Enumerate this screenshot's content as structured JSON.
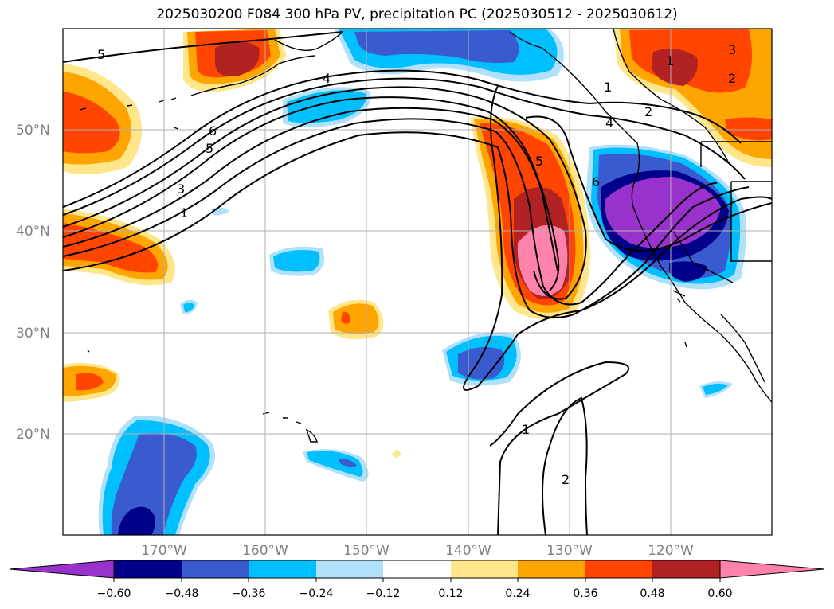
{
  "title": "2025030200 F084 300 hPa PV, precipitation PC (2025030512 - 2025030612)",
  "lat_labels": [
    "50°N",
    "40°N",
    "30°N",
    "20°N"
  ],
  "lon_labels": [
    "170°W",
    "160°W",
    "150°W",
    "140°W",
    "130°W",
    "120°W"
  ],
  "contour_labels": [
    "5",
    "4",
    "6",
    "5",
    "3",
    "1",
    "1",
    "2",
    "3",
    "2",
    "1",
    "5",
    "6",
    "4",
    "1",
    "2"
  ],
  "colorbar": {
    "ticks": [
      "−0.60",
      "−0.48",
      "−0.36",
      "−0.24",
      "−0.12",
      "0.12",
      "0.24",
      "0.36",
      "0.48",
      "0.60"
    ],
    "colors": [
      "#9932cc",
      "#00008b",
      "#3a5bd0",
      "#00bfff",
      "#b0e0fa",
      "#ffffff",
      "#ffe68a",
      "#ffa500",
      "#ff4500",
      "#b22222",
      "#ff82ab"
    ]
  },
  "field_colors": {
    "pos1": "#ffe68a",
    "pos2": "#ffa500",
    "pos3": "#ff4500",
    "pos4": "#b22222",
    "pos5": "#ff82ab",
    "neg1": "#b0e0fa",
    "neg2": "#00bfff",
    "neg3": "#3a5bd0",
    "neg4": "#00008b",
    "neg5": "#9932cc"
  }
}
